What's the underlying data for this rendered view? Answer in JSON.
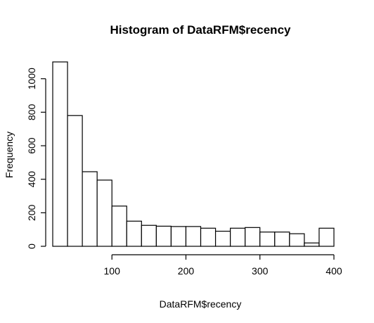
{
  "chart_data": {
    "type": "bar",
    "title": "Histogram of DataRFM$recency",
    "xlabel": "DataRFM$recency",
    "ylabel": "Frequency",
    "bin_edges": [
      20,
      40,
      60,
      80,
      100,
      120,
      140,
      160,
      180,
      200,
      220,
      240,
      260,
      280,
      300,
      320,
      340,
      360,
      380,
      400
    ],
    "values": [
      1100,
      780,
      445,
      395,
      240,
      150,
      125,
      120,
      118,
      118,
      108,
      90,
      108,
      112,
      85,
      85,
      75,
      20,
      108
    ],
    "x_ticks": [
      100,
      200,
      300,
      400
    ],
    "y_ticks": [
      0,
      200,
      400,
      600,
      800,
      1000
    ],
    "xlim": [
      20,
      400
    ],
    "ylim": [
      0,
      1100
    ],
    "grid": false,
    "legend": "none"
  }
}
